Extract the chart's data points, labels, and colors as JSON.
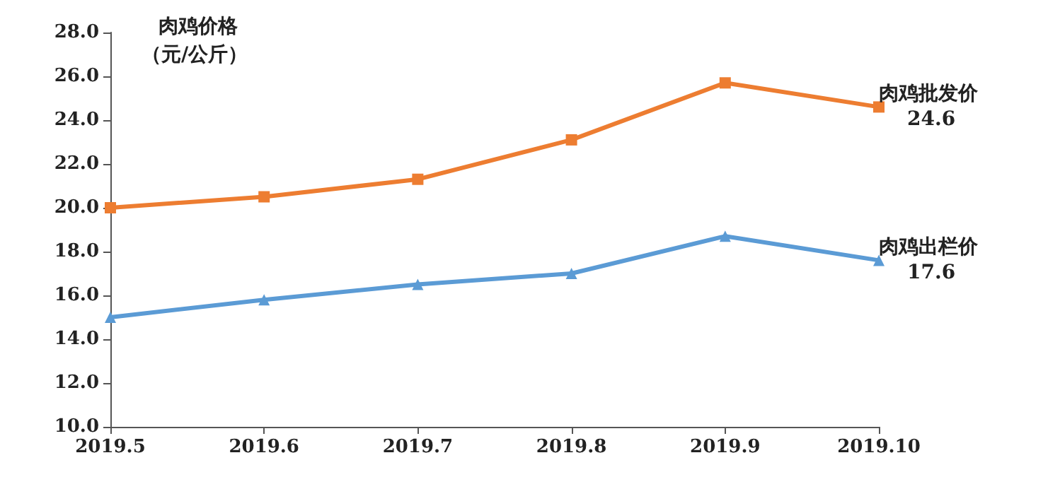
{
  "chart_data": {
    "type": "line",
    "ylabel": "肉鸡价格",
    "annotations": [
      "（元/公斤）"
    ],
    "categories": [
      "2019.5",
      "2019.6",
      "2019.7",
      "2019.8",
      "2019.9",
      "2019.10"
    ],
    "series": [
      {
        "name": "肉鸡批发价",
        "color": "#ed7d31",
        "marker": "square",
        "values": [
          20.0,
          20.5,
          21.3,
          23.1,
          25.7,
          24.6
        ],
        "value_labels": [
          null,
          null,
          null,
          null,
          null,
          "24.6"
        ]
      },
      {
        "name": "肉鸡出栏价",
        "color": "#5b9bd5",
        "marker": "triangle",
        "values": [
          15.0,
          15.8,
          16.5,
          17.0,
          18.7,
          17.6
        ],
        "value_labels": [
          null,
          null,
          null,
          null,
          null,
          "17.6"
        ]
      }
    ],
    "ylim": [
      10,
      28
    ],
    "yticks": [
      {
        "value": 10,
        "label": "10.0"
      },
      {
        "value": 12,
        "label": "12.0"
      },
      {
        "value": 14,
        "label": "14.0"
      },
      {
        "value": 16,
        "label": "16.0"
      },
      {
        "value": 18,
        "label": "18.0"
      },
      {
        "value": 20,
        "label": "20.0"
      },
      {
        "value": 22,
        "label": "22.0"
      },
      {
        "value": 24,
        "label": "24.0"
      },
      {
        "value": 26,
        "label": "26.0"
      },
      {
        "value": 28,
        "label": "28.0"
      }
    ],
    "grid": false,
    "legend": false
  }
}
